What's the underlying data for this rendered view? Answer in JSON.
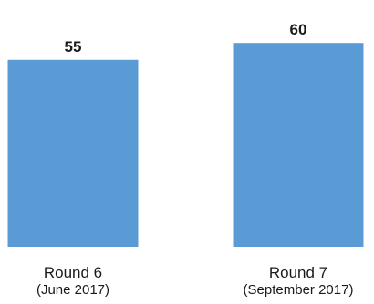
{
  "chart_data": {
    "type": "bar",
    "categories": [
      "Round 6",
      "Round 7"
    ],
    "category_sublabels": [
      "(June 2017)",
      "(September 2017)"
    ],
    "values": [
      55,
      60
    ],
    "data_labels": [
      "55",
      "60"
    ],
    "bar_color": "#5b9bd5",
    "label_color": "#1a1a1a",
    "grid": false,
    "legend": "none"
  }
}
